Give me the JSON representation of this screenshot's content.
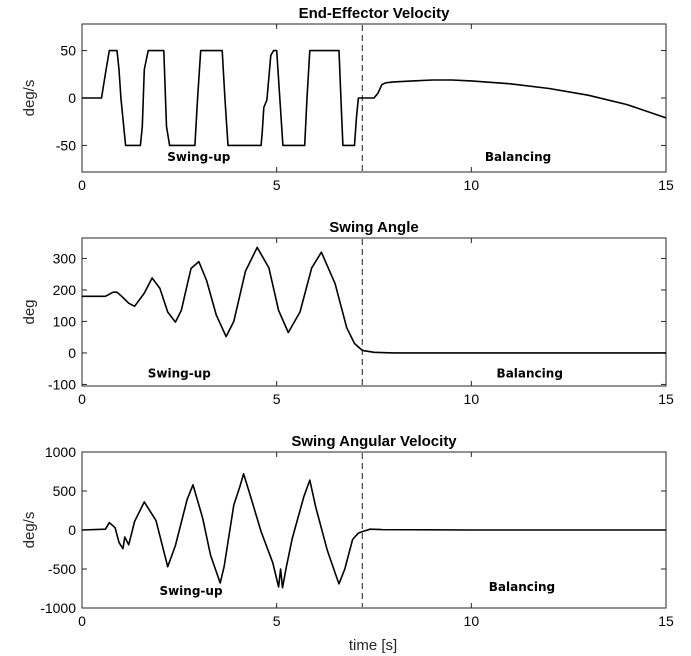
{
  "figure": {
    "xlabel": "time [s]"
  },
  "chart_data": [
    {
      "type": "line",
      "title": "End-Effector Velocity",
      "xlabel": "",
      "ylabel": "deg/s",
      "xlim": [
        0,
        15
      ],
      "ylim": [
        -78,
        78
      ],
      "xticks": [
        0,
        5,
        10,
        15
      ],
      "yticks": [
        50,
        0,
        -50
      ],
      "grid": false,
      "divider_x": 7.2,
      "annotations": [
        {
          "text": "Swing-up",
          "x": 3.0,
          "y": -62
        },
        {
          "text": "Balancing",
          "x": 11.2,
          "y": -62
        }
      ],
      "series": [
        {
          "x": [
            0,
            0.5,
            0.62,
            0.7,
            0.9,
            0.95,
            1.0,
            1.12,
            1.2,
            1.5,
            1.55,
            1.6,
            1.7,
            2.1,
            2.17,
            2.25,
            2.35,
            2.9,
            2.97,
            3.05,
            3.15,
            3.6,
            3.67,
            3.75,
            3.85,
            4.6,
            4.63,
            4.67,
            4.75,
            4.85,
            4.92,
            5.0,
            5.08,
            5.16,
            5.28,
            5.72,
            5.78,
            5.85,
            5.95,
            6.6,
            6.65,
            6.7,
            6.78,
            7.0,
            7.05,
            7.1,
            7.2,
            7.21,
            7.5,
            7.6,
            7.7,
            7.8,
            8.0,
            8.5,
            9.0,
            9.5,
            10.0,
            11.0,
            12.0,
            13.0,
            14.0,
            15.0
          ],
          "y": [
            0,
            0,
            30,
            50,
            50,
            30,
            0,
            -50,
            -50,
            -50,
            -30,
            30,
            50,
            50,
            -30,
            -50,
            -50,
            -50,
            0,
            50,
            50,
            50,
            0,
            -50,
            -50,
            -50,
            -35,
            -10,
            -2,
            45,
            50,
            50,
            0,
            -50,
            -50,
            -50,
            0,
            50,
            50,
            50,
            0,
            -50,
            -50,
            -50,
            -20,
            0,
            0,
            0,
            0,
            5,
            14,
            16,
            17,
            18,
            19,
            19,
            18,
            15,
            10,
            3,
            -7,
            -21
          ]
        }
      ]
    },
    {
      "type": "line",
      "title": "Swing Angle",
      "xlabel": "",
      "ylabel": "deg",
      "xlim": [
        0,
        15
      ],
      "ylim": [
        -105,
        365
      ],
      "xticks": [
        0,
        5,
        10,
        15
      ],
      "yticks": [
        300,
        200,
        100,
        0,
        -100
      ],
      "grid": false,
      "divider_x": 7.2,
      "annotations": [
        {
          "text": "Swing-up",
          "x": 2.5,
          "y": -65
        },
        {
          "text": "Balancing",
          "x": 11.5,
          "y": -65
        }
      ],
      "series": [
        {
          "x": [
            0,
            0.6,
            0.8,
            0.9,
            1.0,
            1.2,
            1.35,
            1.6,
            1.8,
            2.0,
            2.2,
            2.4,
            2.55,
            2.8,
            3.0,
            3.2,
            3.45,
            3.7,
            3.9,
            4.2,
            4.5,
            4.8,
            5.05,
            5.3,
            5.6,
            5.9,
            6.15,
            6.5,
            6.8,
            7.0,
            7.2,
            7.5,
            8.0,
            10.0,
            15.0
          ],
          "y": [
            180,
            180,
            193,
            193,
            182,
            158,
            148,
            190,
            238,
            205,
            130,
            98,
            135,
            268,
            290,
            230,
            120,
            52,
            100,
            260,
            335,
            270,
            135,
            65,
            130,
            270,
            320,
            220,
            80,
            30,
            8,
            2,
            0,
            0,
            0
          ]
        }
      ]
    },
    {
      "type": "line",
      "title": "Swing Angular Velocity",
      "xlabel": "time [s]",
      "ylabel": "deg/s",
      "xlim": [
        0,
        15
      ],
      "ylim": [
        -1000,
        1000
      ],
      "xticks": [
        0,
        5,
        10,
        15
      ],
      "yticks": [
        1000,
        500,
        0,
        -500,
        -1000
      ],
      "grid": false,
      "divider_x": 7.2,
      "annotations": [
        {
          "text": "Swing-up",
          "x": 2.8,
          "y": -780
        },
        {
          "text": "Balancing",
          "x": 11.3,
          "y": -730
        }
      ],
      "series": [
        {
          "x": [
            0,
            0.6,
            0.7,
            0.85,
            0.95,
            1.05,
            1.1,
            1.2,
            1.35,
            1.6,
            1.9,
            2.2,
            2.4,
            2.7,
            2.85,
            3.1,
            3.3,
            3.55,
            3.65,
            3.9,
            4.05,
            4.15,
            4.3,
            4.6,
            4.9,
            5.05,
            5.1,
            5.15,
            5.25,
            5.4,
            5.7,
            5.85,
            6.0,
            6.3,
            6.55,
            6.6,
            6.75,
            6.95,
            7.1,
            7.2,
            7.4,
            7.7,
            10.0,
            15.0
          ],
          "y": [
            0,
            10,
            95,
            30,
            -160,
            -240,
            -90,
            -190,
            110,
            360,
            120,
            -470,
            -200,
            390,
            580,
            150,
            -320,
            -680,
            -470,
            320,
            550,
            720,
            480,
            -20,
            -420,
            -730,
            -500,
            -740,
            -470,
            -110,
            430,
            640,
            300,
            -260,
            -620,
            -690,
            -500,
            -120,
            -40,
            -20,
            10,
            5,
            0,
            0
          ]
        }
      ]
    }
  ]
}
